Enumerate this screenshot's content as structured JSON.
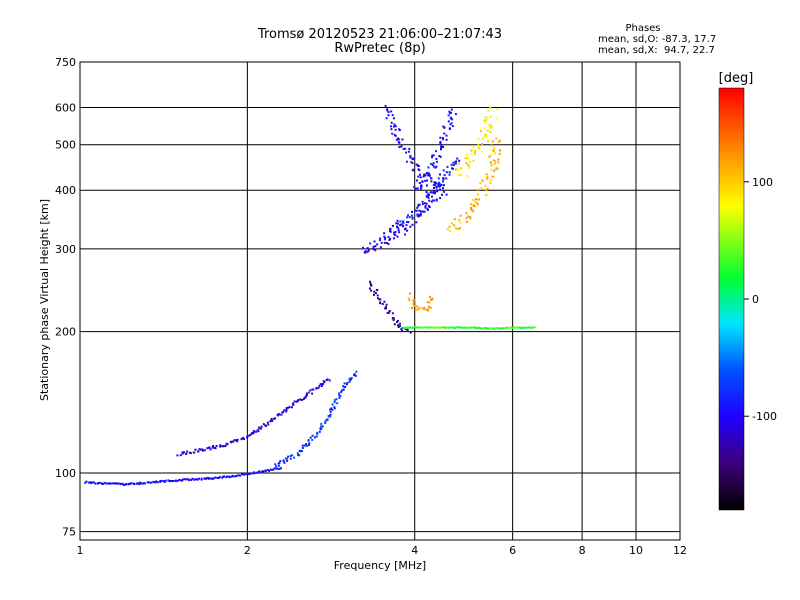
{
  "title_line1": "Tromsø 20120523 21:06:00–21:07:43",
  "title_line2": "RwPretec (8p)",
  "phases": {
    "heading": "Phases",
    "line1": "mean, sd,O: -87.3, 17.7",
    "line2": "mean, sd,X:  94.7, 22.7"
  },
  "colorbar": {
    "unit": "[deg]",
    "ticks": [
      100,
      0,
      -100
    ],
    "range": [
      -180,
      180
    ]
  },
  "chart_data": {
    "type": "scatter",
    "xlabel": "Frequency [MHz]",
    "ylabel": "Stationary phase Virtual Height [km]",
    "x_scale": "log",
    "y_scale": "log",
    "xlim": [
      1,
      12
    ],
    "ylim": [
      72,
      750
    ],
    "xticks": [
      1,
      2,
      4,
      6,
      8,
      10,
      12
    ],
    "yticks": [
      75,
      100,
      200,
      300,
      400,
      500,
      600,
      750
    ],
    "grid": true,
    "traces": [
      {
        "x": [
          1.02,
          1.2,
          1.5,
          1.75,
          2.0,
          2.3
        ],
        "y": [
          96,
          95,
          97,
          98,
          100,
          103
        ],
        "phase": -95,
        "spread": 1.5
      },
      {
        "x": [
          2.2,
          2.45,
          2.7,
          2.85,
          3.0,
          3.15
        ],
        "y": [
          103,
          110,
          125,
          140,
          155,
          165
        ],
        "phase": -75,
        "spread": 4
      },
      {
        "x": [
          1.5,
          1.8,
          2.0,
          2.3,
          2.6,
          2.8
        ],
        "y": [
          110,
          115,
          120,
          135,
          150,
          160
        ],
        "phase": -110,
        "spread": 3
      },
      {
        "x": [
          3.3,
          3.5,
          3.7,
          3.9
        ],
        "y": [
          255,
          230,
          210,
          200
        ],
        "phase": -130,
        "spread": 5
      },
      {
        "x": [
          3.2,
          3.5,
          3.8,
          4.0,
          4.3,
          4.5
        ],
        "y": [
          300,
          310,
          330,
          350,
          380,
          420
        ],
        "phase": -100,
        "spread": 8
      },
      {
        "x": [
          3.5,
          3.7,
          4.0,
          4.2,
          4.5,
          4.8
        ],
        "y": [
          320,
          340,
          360,
          390,
          430,
          470
        ],
        "phase": -90,
        "spread": 7
      },
      {
        "x": [
          3.55,
          3.7,
          3.9,
          4.2,
          4.5
        ],
        "y": [
          600,
          540,
          470,
          420,
          400
        ],
        "phase": -100,
        "spread": 10
      },
      {
        "x": [
          4.0,
          4.3,
          4.5,
          4.7
        ],
        "y": [
          400,
          450,
          520,
          600
        ],
        "phase": -95,
        "spread": 8
      },
      {
        "x": [
          4.6,
          4.9,
          5.2,
          5.5,
          5.6
        ],
        "y": [
          330,
          350,
          390,
          440,
          520
        ],
        "phase": 110,
        "spread": 10
      },
      {
        "x": [
          4.8,
          5.0,
          5.3,
          5.5
        ],
        "y": [
          430,
          470,
          520,
          600
        ],
        "phase": 90,
        "spread": 12
      },
      {
        "x": [
          3.8,
          4.1,
          4.5,
          5.0,
          5.5,
          6.0,
          6.6
        ],
        "y": [
          205,
          205,
          205,
          205,
          204,
          205,
          205
        ],
        "phase": 30,
        "spread": 1
      },
      {
        "x": [
          3.9,
          4.0,
          4.2,
          4.3
        ],
        "y": [
          240,
          225,
          225,
          240
        ],
        "phase": 110,
        "spread": 5
      }
    ]
  }
}
